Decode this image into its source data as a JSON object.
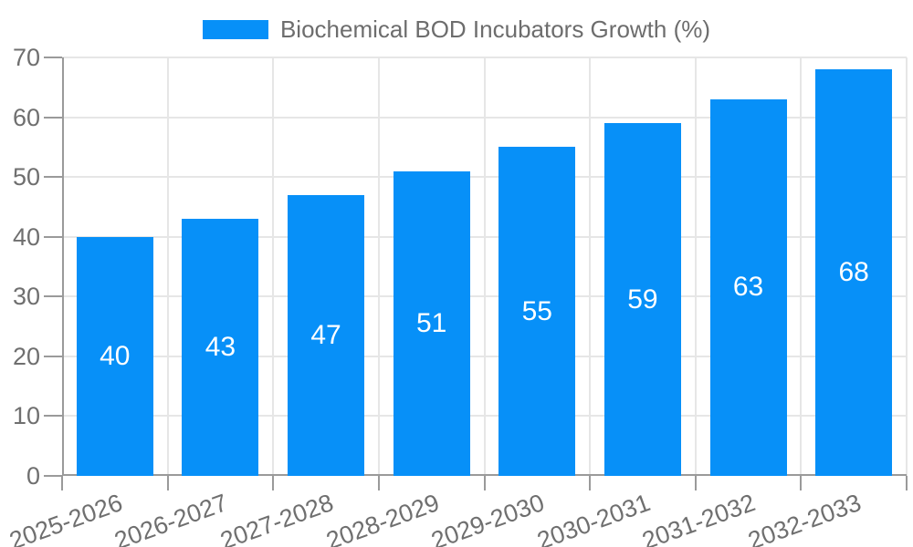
{
  "chart_data": {
    "type": "bar",
    "title": "Biochemical BOD Incubators Growth (%)",
    "legend": {
      "position": "top",
      "label": "Biochemical BOD Incubators Growth (%)"
    },
    "categories": [
      "2025-2026",
      "2026-2027",
      "2027-2028",
      "2028-2029",
      "2029-2030",
      "2030-2031",
      "2031-2032",
      "2032-2033"
    ],
    "series": [
      {
        "name": "Biochemical BOD Incubators Growth (%)",
        "values": [
          40,
          43,
          47,
          51,
          55,
          59,
          63,
          68
        ]
      }
    ],
    "value_labels_shown": true,
    "xlabel": "",
    "ylabel": "",
    "ylim": [
      0,
      70
    ],
    "yticks": [
      0,
      10,
      20,
      30,
      40,
      50,
      60,
      70
    ],
    "grid": true,
    "x_tick_rotation_deg": -20,
    "colors": {
      "bar": "#0790f8",
      "value_label": "#ffffff",
      "axis": "#9a9a9a",
      "gridline": "#e6e6e6",
      "tick_label": "#6f6f6f",
      "legend_text": "#6d6d6d",
      "background": "#ffffff"
    }
  }
}
